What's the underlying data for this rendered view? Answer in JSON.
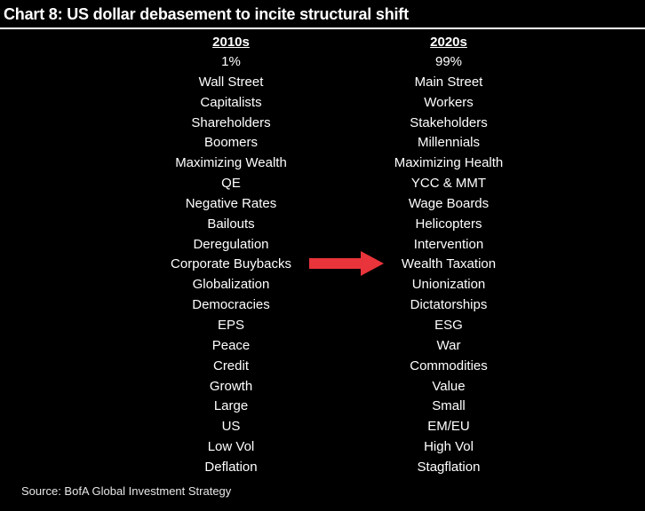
{
  "title": "Chart 8: US dollar debasement to incite structural shift",
  "left_column": {
    "header": "2010s",
    "items": [
      "1%",
      "Wall Street",
      "Capitalists",
      "Shareholders",
      "Boomers",
      "Maximizing Wealth",
      "QE",
      "Negative Rates",
      "Bailouts",
      "Deregulation",
      "Corporate Buybacks",
      "Globalization",
      "Democracies",
      "EPS",
      "Peace",
      "Credit",
      "Growth",
      "Large",
      "US",
      "Low Vol",
      "Deflation"
    ]
  },
  "right_column": {
    "header": "2020s",
    "items": [
      "99%",
      "Main Street",
      "Workers",
      "Stakeholders",
      "Millennials",
      "Maximizing Health",
      "YCC & MMT",
      "Wage Boards",
      "Helicopters",
      "Intervention",
      "Wealth Taxation",
      "Unionization",
      "Dictatorships",
      "ESG",
      "War",
      "Commodities",
      "Value",
      "Small",
      "EM/EU",
      "High Vol",
      "Stagflation"
    ]
  },
  "arrow": {
    "icon": "right-arrow-icon",
    "color": "#e8343a"
  },
  "source": "Source: BofA Global Investment Strategy",
  "colors": {
    "background": "#000000",
    "text": "#ffffff"
  }
}
